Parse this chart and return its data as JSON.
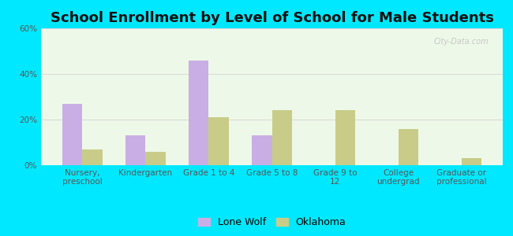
{
  "title": "School Enrollment by Level of School for Male Students",
  "categories": [
    "Nursery,\npreschool",
    "Kindergarten",
    "Grade 1 to 4",
    "Grade 5 to 8",
    "Grade 9 to\n12",
    "College\nundergrad",
    "Graduate or\nprofessional"
  ],
  "lone_wolf": [
    27,
    13,
    46,
    13,
    0,
    0,
    0
  ],
  "oklahoma": [
    7,
    6,
    21,
    24,
    24,
    16,
    3
  ],
  "lone_wolf_color": "#c9aee5",
  "oklahoma_color": "#c8cc88",
  "background_outer": "#00e8ff",
  "background_inner": "#eef8e8",
  "ylim": [
    0,
    60
  ],
  "yticks": [
    0,
    20,
    40,
    60
  ],
  "ytick_labels": [
    "0%",
    "20%",
    "40%",
    "60%"
  ],
  "grid_color": "#d8d8d8",
  "title_fontsize": 13,
  "tick_fontsize": 7.5,
  "legend_fontsize": 9,
  "bar_width": 0.32
}
